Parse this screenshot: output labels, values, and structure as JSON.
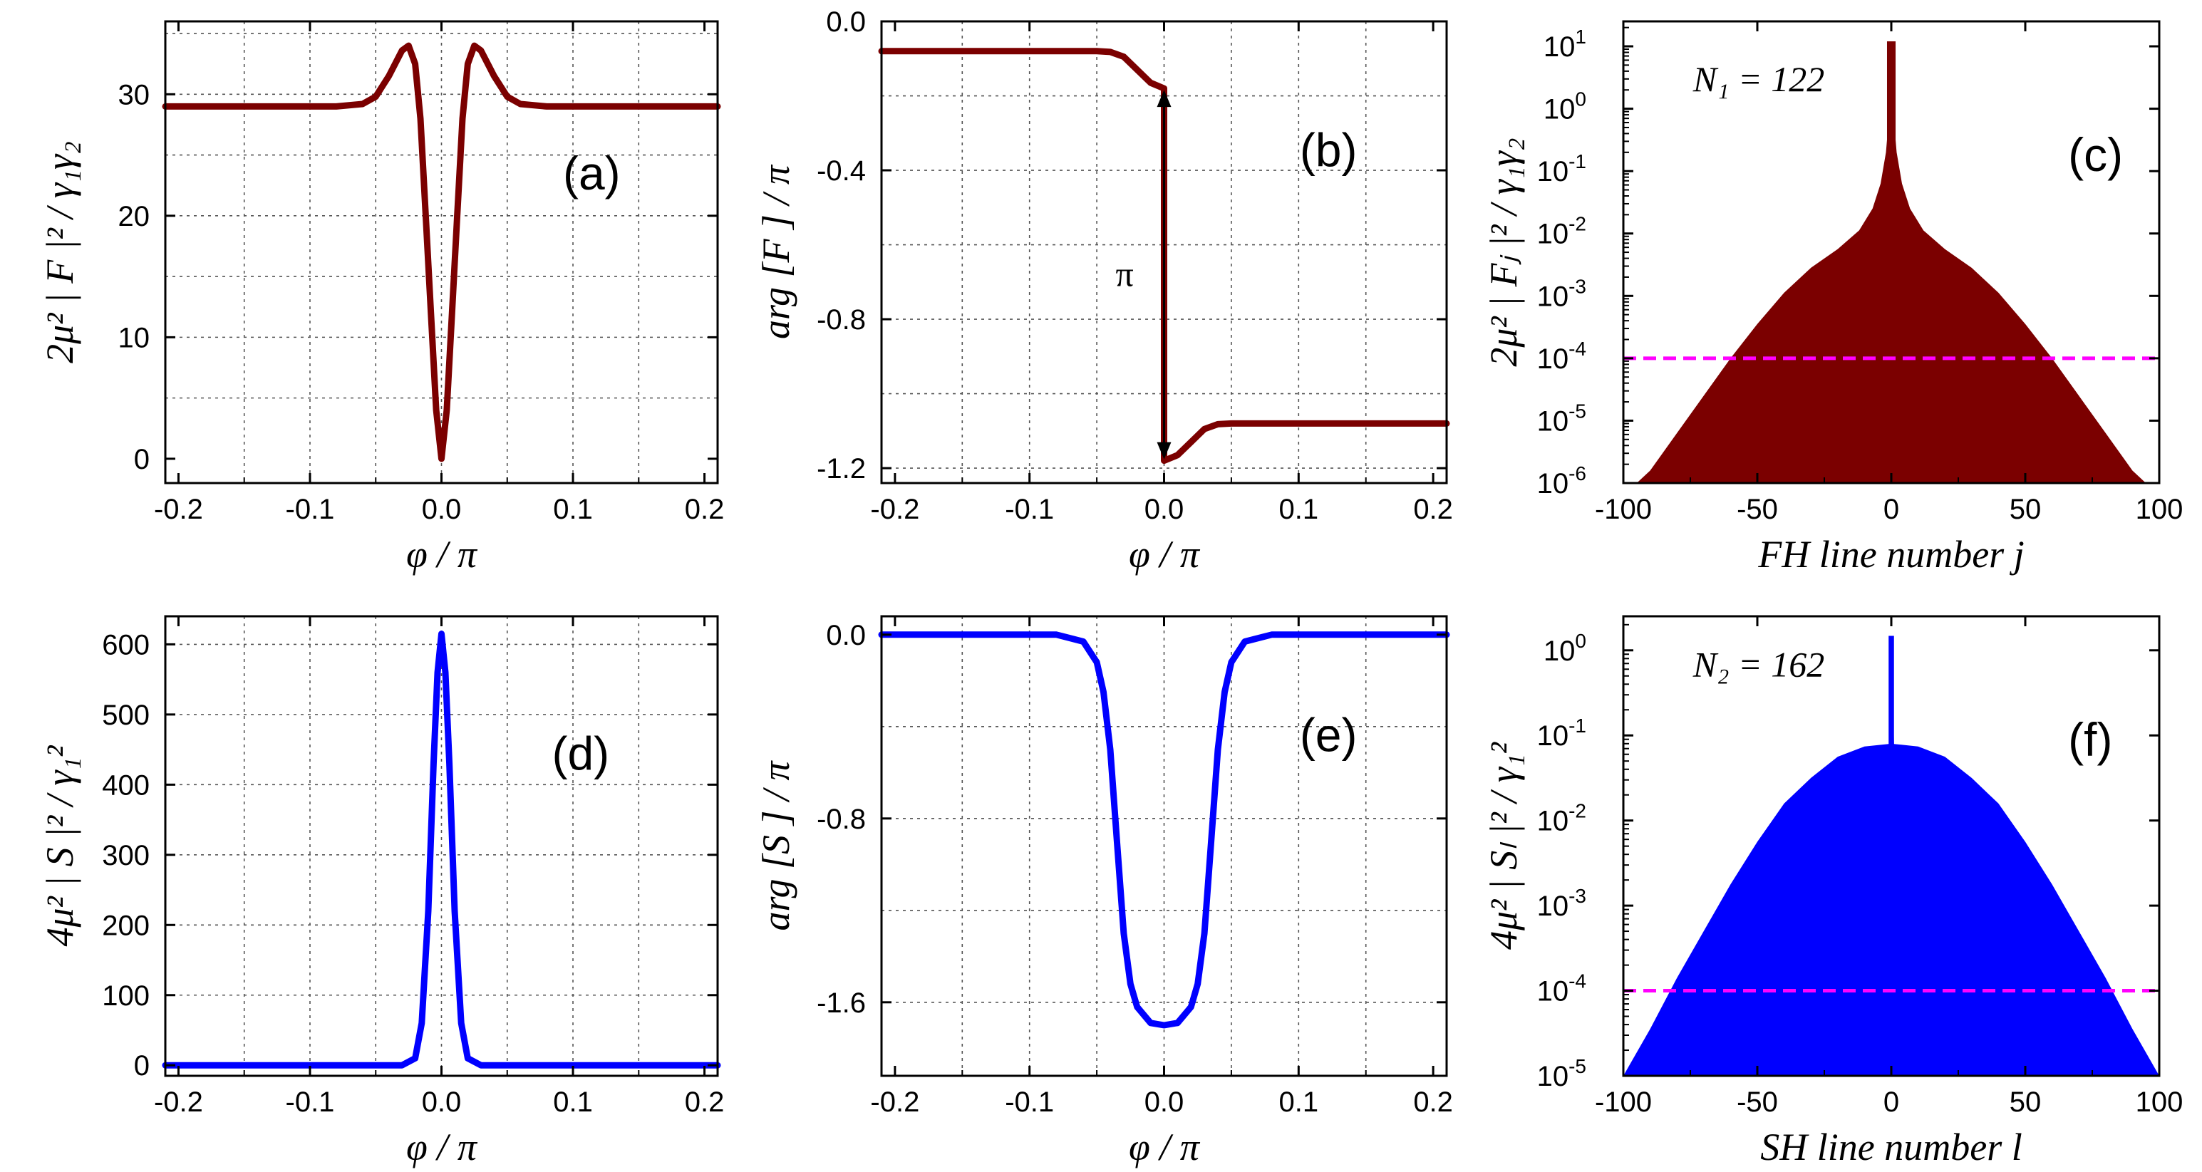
{
  "figure": {
    "colors": {
      "fh": "#7b0000",
      "sh": "#0000ff",
      "threshold": "#ff00ff",
      "axis": "#000000"
    }
  },
  "chart_data": [
    {
      "id": "a",
      "type": "line",
      "panel_label": "(a)",
      "xlabel": "φ / π",
      "ylabel": "2μ² | F |² / γ₁γ₂",
      "xlim": [
        -0.21,
        0.21
      ],
      "ylim": [
        -2,
        36
      ],
      "xticks": [
        -0.2,
        -0.1,
        0.0,
        0.1,
        0.2
      ],
      "xtick_labels": [
        "-0.2",
        "-0.1",
        "0.0",
        "0.1",
        "0.2"
      ],
      "yticks": [
        0,
        10,
        20,
        30
      ],
      "ytick_labels": [
        "0",
        "10",
        "20",
        "30"
      ],
      "grid_x": [
        -0.15,
        -0.1,
        -0.05,
        0.0,
        0.05,
        0.1,
        0.15
      ],
      "grid_y": [
        5,
        10,
        15,
        20,
        25,
        30,
        35
      ],
      "series": [
        {
          "name": "|F|²",
          "color": "#7b0000",
          "x": [
            -0.21,
            -0.08,
            -0.06,
            -0.05,
            -0.04,
            -0.03,
            -0.025,
            -0.02,
            -0.016,
            -0.012,
            -0.008,
            -0.004,
            0.0,
            0.004,
            0.008,
            0.012,
            0.016,
            0.02,
            0.025,
            0.03,
            0.04,
            0.05,
            0.06,
            0.08,
            0.21
          ],
          "y": [
            29,
            29,
            29.2,
            29.8,
            31.5,
            33.6,
            34,
            32.5,
            28,
            20,
            12,
            4,
            0,
            4,
            12,
            20,
            28,
            32.5,
            34,
            33.6,
            31.5,
            29.8,
            29.2,
            29,
            29
          ]
        }
      ]
    },
    {
      "id": "b",
      "type": "line",
      "panel_label": "(b)",
      "xlabel": "φ / π",
      "ylabel": "arg [F ] / π",
      "xlim": [
        -0.21,
        0.21
      ],
      "ylim": [
        -1.24,
        0.0
      ],
      "xticks": [
        -0.2,
        -0.1,
        0.0,
        0.1,
        0.2
      ],
      "xtick_labels": [
        "-0.2",
        "-0.1",
        "0.0",
        "0.1",
        "0.2"
      ],
      "yticks": [
        0.0,
        -0.4,
        -0.8,
        -1.2
      ],
      "ytick_labels": [
        "0.0",
        "-0.4",
        "-0.8",
        "-1.2"
      ],
      "grid_x": [
        -0.15,
        -0.1,
        -0.05,
        0.0,
        0.05,
        0.1,
        0.15
      ],
      "grid_y": [
        -0.2,
        -0.4,
        -0.6,
        -0.8,
        -1.0,
        -1.2
      ],
      "annotation": {
        "text": "π",
        "arrow_from_y": -0.18,
        "arrow_to_y": -1.18,
        "arrow_x": 0.0
      },
      "series": [
        {
          "name": "arg F",
          "color": "#7b0000",
          "x": [
            -0.21,
            -0.05,
            -0.04,
            -0.03,
            -0.02,
            -0.01,
            0.0,
            0.0,
            0.01,
            0.02,
            0.03,
            0.04,
            0.05,
            0.21
          ],
          "y": [
            -0.08,
            -0.08,
            -0.082,
            -0.095,
            -0.13,
            -0.165,
            -0.18,
            -1.18,
            -1.165,
            -1.13,
            -1.095,
            -1.082,
            -1.08,
            -1.08
          ]
        }
      ]
    },
    {
      "id": "c",
      "type": "area",
      "panel_label": "(c)",
      "xlabel": "FH line number j",
      "ylabel": "2μ² | Fⱼ |² / γ₁γ₂",
      "annotation": "N₁ = 122",
      "xlim": [
        -100,
        100
      ],
      "ylim_log10": [
        -6,
        1.4
      ],
      "xticks": [
        -100,
        -50,
        0,
        50,
        100
      ],
      "xtick_labels": [
        "-100",
        "-50",
        "0",
        "50",
        "100"
      ],
      "ytick_exponents": [
        -6,
        -5,
        -4,
        -3,
        -2,
        -1,
        0,
        1
      ],
      "threshold_log10": -4,
      "series": [
        {
          "name": "|Fⱼ|²",
          "color": "#7b0000",
          "x": [
            -95,
            -90,
            -80,
            -70,
            -60,
            -50,
            -40,
            -30,
            -20,
            -12,
            -7,
            -4,
            -2,
            -1,
            0,
            1,
            2,
            4,
            7,
            12,
            20,
            30,
            40,
            50,
            60,
            70,
            80,
            90,
            95
          ],
          "log10_y": [
            -6,
            -5.8,
            -5.2,
            -4.6,
            -4.0,
            -3.45,
            -2.95,
            -2.55,
            -2.25,
            -1.95,
            -1.6,
            -1.2,
            -0.7,
            -0.2,
            1.08,
            -0.2,
            -0.7,
            -1.2,
            -1.6,
            -1.95,
            -2.25,
            -2.55,
            -2.95,
            -3.45,
            -4.0,
            -4.6,
            -5.2,
            -5.8,
            -6
          ]
        }
      ]
    },
    {
      "id": "d",
      "type": "line",
      "panel_label": "(d)",
      "xlabel": "φ / π",
      "ylabel": "4μ² | S |² / γ₁²",
      "xlim": [
        -0.21,
        0.21
      ],
      "ylim": [
        -15,
        640
      ],
      "xticks": [
        -0.2,
        -0.1,
        0.0,
        0.1,
        0.2
      ],
      "xtick_labels": [
        "-0.2",
        "-0.1",
        "0.0",
        "0.1",
        "0.2"
      ],
      "yticks": [
        0,
        100,
        200,
        300,
        400,
        500,
        600
      ],
      "ytick_labels": [
        "0",
        "100",
        "200",
        "300",
        "400",
        "500",
        "600"
      ],
      "grid_x": [
        -0.15,
        -0.1,
        -0.05,
        0.0,
        0.05,
        0.1,
        0.15
      ],
      "grid_y": [
        100,
        200,
        300,
        400,
        500,
        600
      ],
      "series": [
        {
          "name": "|S|²",
          "color": "#0000ff",
          "x": [
            -0.21,
            -0.03,
            -0.02,
            -0.015,
            -0.01,
            -0.006,
            -0.003,
            0.0,
            0.003,
            0.006,
            0.01,
            0.015,
            0.02,
            0.03,
            0.21
          ],
          "y": [
            0,
            0,
            10,
            60,
            220,
            430,
            560,
            615,
            560,
            430,
            220,
            60,
            10,
            0,
            0
          ]
        }
      ]
    },
    {
      "id": "e",
      "type": "line",
      "panel_label": "(e)",
      "xlabel": "φ / π",
      "ylabel": "arg [S ] / π",
      "xlim": [
        -0.21,
        0.21
      ],
      "ylim": [
        -1.92,
        0.08
      ],
      "xticks": [
        -0.2,
        -0.1,
        0.0,
        0.1,
        0.2
      ],
      "xtick_labels": [
        "-0.2",
        "-0.1",
        "0.0",
        "0.1",
        "0.2"
      ],
      "yticks": [
        0.0,
        -0.8,
        -1.6
      ],
      "ytick_labels": [
        "0.0",
        "-0.8",
        "-1.6"
      ],
      "grid_x": [
        -0.15,
        -0.1,
        -0.05,
        0.0,
        0.05,
        0.1,
        0.15
      ],
      "grid_y": [
        -0.4,
        -0.8,
        -1.2,
        -1.6
      ],
      "series": [
        {
          "name": "arg S",
          "color": "#0000ff",
          "x": [
            -0.21,
            -0.08,
            -0.06,
            -0.05,
            -0.045,
            -0.04,
            -0.035,
            -0.03,
            -0.025,
            -0.02,
            -0.01,
            0.0,
            0.01,
            0.02,
            0.025,
            0.03,
            0.035,
            0.04,
            0.045,
            0.05,
            0.06,
            0.08,
            0.21
          ],
          "y": [
            0,
            0,
            -0.03,
            -0.12,
            -0.25,
            -0.5,
            -0.9,
            -1.3,
            -1.52,
            -1.62,
            -1.69,
            -1.7,
            -1.69,
            -1.62,
            -1.52,
            -1.3,
            -0.9,
            -0.5,
            -0.25,
            -0.12,
            -0.03,
            0,
            0
          ]
        }
      ]
    },
    {
      "id": "f",
      "type": "area",
      "panel_label": "(f)",
      "xlabel": "SH line number l",
      "ylabel": "4μ² | Sₗ |² / γ₁²",
      "annotation": "N₂ = 162",
      "xlim": [
        -100,
        100
      ],
      "ylim_log10": [
        -5,
        0.4
      ],
      "xticks": [
        -100,
        -50,
        0,
        50,
        100
      ],
      "xtick_labels": [
        "-100",
        "-50",
        "0",
        "50",
        "100"
      ],
      "ytick_exponents": [
        -5,
        -4,
        -3,
        -2,
        -1,
        0
      ],
      "threshold_log10": -4,
      "series": [
        {
          "name": "|Sₗ|²",
          "color": "#0000ff",
          "x": [
            -100,
            -90,
            -80,
            -70,
            -60,
            -50,
            -40,
            -30,
            -20,
            -10,
            -1,
            0,
            0,
            1,
            10,
            20,
            30,
            40,
            50,
            60,
            70,
            80,
            90,
            100
          ],
          "log10_y": [
            -5,
            -4.45,
            -3.85,
            -3.3,
            -2.75,
            -2.25,
            -1.8,
            -1.5,
            -1.25,
            -1.13,
            -1.1,
            -1.1,
            0.17,
            -1.1,
            -1.13,
            -1.25,
            -1.5,
            -1.8,
            -2.25,
            -2.75,
            -3.3,
            -3.85,
            -4.45,
            -5
          ]
        }
      ]
    }
  ]
}
